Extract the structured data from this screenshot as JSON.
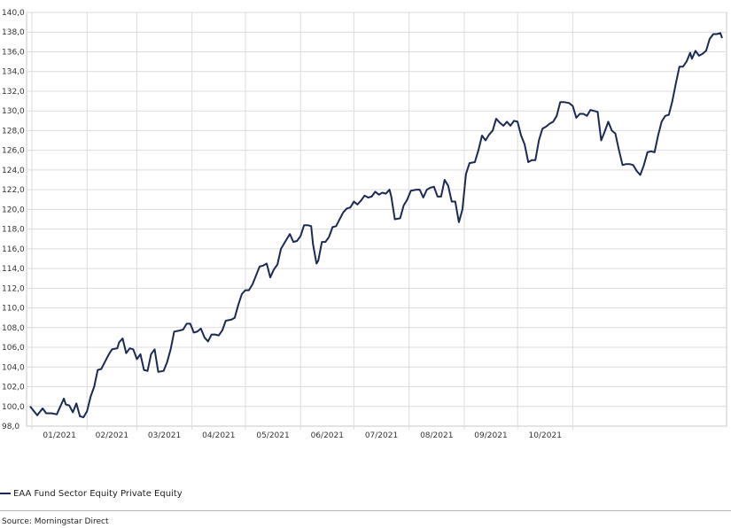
{
  "chart_data": {
    "type": "line",
    "ylim": [
      98,
      140
    ],
    "yticks": [
      "98,0",
      "100,0",
      "102,0",
      "104,0",
      "106,0",
      "108,0",
      "110,0",
      "112,0",
      "114,0",
      "116,0",
      "118,0",
      "120,0",
      "122,0",
      "124,0",
      "126,0",
      "128,0",
      "130,0",
      "132,0",
      "134,0",
      "136,0",
      "138,0",
      "140,0"
    ],
    "xticks": [
      "01/2021",
      "02/2021",
      "03/2021",
      "04/2021",
      "05/2021",
      "06/2021",
      "07/2021",
      "08/2021",
      "09/2021",
      "10/2021"
    ],
    "grid": true,
    "legend_position": "bottom-left",
    "series": [
      {
        "name": "EAA Fund Sector Equity Private Equity",
        "color": "#1b2a55",
        "points": [
          [
            "2020-12-31",
            100.0
          ],
          [
            "2021-01-04",
            99.1
          ],
          [
            "2021-01-07",
            99.8
          ],
          [
            "2021-01-09",
            99.3
          ],
          [
            "2021-01-12",
            99.3
          ],
          [
            "2021-01-15",
            99.2
          ],
          [
            "2021-01-19",
            100.8
          ],
          [
            "2021-01-20",
            100.2
          ],
          [
            "2021-01-22",
            100.1
          ],
          [
            "2021-01-24",
            99.4
          ],
          [
            "2021-01-26",
            100.3
          ],
          [
            "2021-01-28",
            99.0
          ],
          [
            "2021-01-30",
            98.9
          ],
          [
            "2021-02-01",
            99.5
          ],
          [
            "2021-02-03",
            101.0
          ],
          [
            "2021-02-05",
            102.0
          ],
          [
            "2021-02-07",
            103.7
          ],
          [
            "2021-02-09",
            103.8
          ],
          [
            "2021-02-11",
            104.5
          ],
          [
            "2021-02-13",
            105.2
          ],
          [
            "2021-02-15",
            105.8
          ],
          [
            "2021-02-18",
            105.9
          ],
          [
            "2021-02-19",
            106.5
          ],
          [
            "2021-02-21",
            106.9
          ],
          [
            "2021-02-23",
            105.4
          ],
          [
            "2021-02-25",
            105.9
          ],
          [
            "2021-02-27",
            105.8
          ],
          [
            "2021-03-01",
            104.8
          ],
          [
            "2021-03-03",
            105.3
          ],
          [
            "2021-03-05",
            103.7
          ],
          [
            "2021-03-07",
            103.6
          ],
          [
            "2021-03-09",
            105.3
          ],
          [
            "2021-03-11",
            105.8
          ],
          [
            "2021-03-13",
            103.5
          ],
          [
            "2021-03-16",
            103.6
          ],
          [
            "2021-03-18",
            104.5
          ],
          [
            "2021-03-20",
            105.8
          ],
          [
            "2021-03-22",
            107.6
          ],
          [
            "2021-03-25",
            107.7
          ],
          [
            "2021-03-27",
            107.8
          ],
          [
            "2021-03-29",
            108.4
          ],
          [
            "2021-03-31",
            108.4
          ],
          [
            "2021-04-02",
            107.5
          ],
          [
            "2021-04-04",
            107.6
          ],
          [
            "2021-04-06",
            107.9
          ],
          [
            "2021-04-08",
            107.0
          ],
          [
            "2021-04-10",
            106.6
          ],
          [
            "2021-04-12",
            107.3
          ],
          [
            "2021-04-14",
            107.3
          ],
          [
            "2021-04-16",
            107.2
          ],
          [
            "2021-04-18",
            107.7
          ],
          [
            "2021-04-20",
            108.7
          ],
          [
            "2021-04-23",
            108.8
          ],
          [
            "2021-04-25",
            109.0
          ],
          [
            "2021-04-27",
            110.3
          ],
          [
            "2021-04-29",
            111.4
          ],
          [
            "2021-05-01",
            111.8
          ],
          [
            "2021-05-03",
            111.8
          ],
          [
            "2021-05-05",
            112.4
          ],
          [
            "2021-05-07",
            113.3
          ],
          [
            "2021-05-09",
            114.2
          ],
          [
            "2021-05-11",
            114.3
          ],
          [
            "2021-05-13",
            114.5
          ],
          [
            "2021-05-15",
            113.1
          ],
          [
            "2021-05-17",
            113.9
          ],
          [
            "2021-05-19",
            114.4
          ],
          [
            "2021-05-21",
            116.0
          ],
          [
            "2021-05-24",
            116.9
          ],
          [
            "2021-05-26",
            117.5
          ],
          [
            "2021-05-28",
            116.7
          ],
          [
            "2021-05-30",
            116.8
          ],
          [
            "2021-06-01",
            117.3
          ],
          [
            "2021-06-03",
            118.4
          ],
          [
            "2021-06-05",
            118.4
          ],
          [
            "2021-06-07",
            118.3
          ],
          [
            "2021-06-08",
            116.5
          ],
          [
            "2021-06-10",
            114.5
          ],
          [
            "2021-06-11",
            114.8
          ],
          [
            "2021-06-13",
            116.7
          ],
          [
            "2021-06-15",
            116.7
          ],
          [
            "2021-06-17",
            117.2
          ],
          [
            "2021-06-19",
            118.2
          ],
          [
            "2021-06-21",
            118.3
          ],
          [
            "2021-06-23",
            119.0
          ],
          [
            "2021-06-25",
            119.7
          ],
          [
            "2021-06-27",
            120.1
          ],
          [
            "2021-06-29",
            120.2
          ],
          [
            "2021-07-01",
            120.8
          ],
          [
            "2021-07-03",
            120.5
          ],
          [
            "2021-07-05",
            120.9
          ],
          [
            "2021-07-07",
            121.4
          ],
          [
            "2021-07-09",
            121.2
          ],
          [
            "2021-07-11",
            121.3
          ],
          [
            "2021-07-13",
            121.8
          ],
          [
            "2021-07-15",
            121.5
          ],
          [
            "2021-07-17",
            121.7
          ],
          [
            "2021-07-19",
            121.6
          ],
          [
            "2021-07-21",
            122.0
          ],
          [
            "2021-07-22",
            121.3
          ],
          [
            "2021-07-24",
            119.0
          ],
          [
            "2021-07-27",
            119.1
          ],
          [
            "2021-07-29",
            120.4
          ],
          [
            "2021-07-31",
            121.0
          ],
          [
            "2021-08-02",
            121.9
          ],
          [
            "2021-08-05",
            122.0
          ],
          [
            "2021-08-07",
            122.0
          ],
          [
            "2021-08-09",
            121.2
          ],
          [
            "2021-08-11",
            122.0
          ],
          [
            "2021-08-13",
            122.2
          ],
          [
            "2021-08-15",
            122.3
          ],
          [
            "2021-08-17",
            121.3
          ],
          [
            "2021-08-19",
            121.3
          ],
          [
            "2021-08-21",
            123.0
          ],
          [
            "2021-08-23",
            122.4
          ],
          [
            "2021-08-25",
            120.8
          ],
          [
            "2021-08-27",
            120.8
          ],
          [
            "2021-08-29",
            118.7
          ],
          [
            "2021-08-31",
            120.0
          ],
          [
            "2021-09-02",
            123.6
          ],
          [
            "2021-09-04",
            124.7
          ],
          [
            "2021-09-07",
            124.8
          ],
          [
            "2021-09-09",
            126.0
          ],
          [
            "2021-09-11",
            127.5
          ],
          [
            "2021-09-13",
            127.0
          ],
          [
            "2021-09-15",
            127.6
          ],
          [
            "2021-09-17",
            128.0
          ],
          [
            "2021-09-19",
            129.2
          ],
          [
            "2021-09-21",
            128.8
          ],
          [
            "2021-09-23",
            128.5
          ],
          [
            "2021-09-25",
            128.9
          ],
          [
            "2021-09-27",
            128.5
          ],
          [
            "2021-09-29",
            129.0
          ],
          [
            "2021-10-01",
            128.9
          ],
          [
            "2021-10-03",
            127.5
          ],
          [
            "2021-10-05",
            126.6
          ],
          [
            "2021-10-07",
            124.8
          ],
          [
            "2021-10-09",
            125.0
          ],
          [
            "2021-10-11",
            125.0
          ],
          [
            "2021-10-13",
            127.0
          ],
          [
            "2021-10-15",
            128.2
          ],
          [
            "2021-10-17",
            128.4
          ],
          [
            "2021-10-19",
            128.7
          ],
          [
            "2021-10-21",
            128.9
          ],
          [
            "2021-10-23",
            129.5
          ],
          [
            "2021-10-25",
            130.9
          ],
          [
            "2021-10-27",
            130.9
          ],
          [
            "2021-10-30",
            130.8
          ],
          [
            "2021-11-01",
            130.5
          ],
          [
            "2021-11-03",
            129.3
          ],
          [
            "2021-11-05",
            129.7
          ],
          [
            "2021-11-07",
            129.7
          ],
          [
            "2021-11-09",
            129.5
          ],
          [
            "2021-11-11",
            130.1
          ],
          [
            "2021-11-13",
            130.0
          ],
          [
            "2021-11-15",
            129.9
          ],
          [
            "2021-11-17",
            127.0
          ],
          [
            "2021-11-19",
            127.9
          ],
          [
            "2021-11-21",
            128.9
          ],
          [
            "2021-11-23",
            128.0
          ],
          [
            "2021-11-25",
            127.7
          ],
          [
            "2021-11-27",
            126.0
          ],
          [
            "2021-11-29",
            124.5
          ],
          [
            "2021-12-01",
            124.6
          ],
          [
            "2021-12-03",
            124.6
          ],
          [
            "2021-12-05",
            124.5
          ],
          [
            "2021-12-07",
            123.9
          ],
          [
            "2021-12-09",
            123.5
          ],
          [
            "2021-12-11",
            124.5
          ],
          [
            "2021-12-13",
            125.8
          ],
          [
            "2021-12-15",
            125.9
          ],
          [
            "2021-12-17",
            125.8
          ],
          [
            "2021-12-19",
            127.5
          ],
          [
            "2021-12-21",
            128.9
          ],
          [
            "2021-12-23",
            129.5
          ],
          [
            "2021-12-25",
            129.6
          ],
          [
            "2021-12-27",
            131.0
          ],
          [
            "2021-12-29",
            132.8
          ],
          [
            "2021-12-31",
            134.5
          ],
          [
            "2022-01-02",
            134.5
          ],
          [
            "2022-01-04",
            135.0
          ],
          [
            "2022-01-06",
            135.9
          ],
          [
            "2022-01-07",
            135.3
          ],
          [
            "2022-01-09",
            136.1
          ],
          [
            "2022-01-11",
            135.6
          ],
          [
            "2022-01-13",
            135.8
          ],
          [
            "2022-01-15",
            136.1
          ],
          [
            "2022-01-17",
            137.3
          ],
          [
            "2022-01-19",
            137.8
          ],
          [
            "2022-01-21",
            137.8
          ],
          [
            "2022-01-23",
            137.9
          ],
          [
            "2022-01-24",
            137.4
          ]
        ]
      }
    ]
  },
  "legend": {
    "label": "EAA Fund Sector Equity Private Equity",
    "color": "#1b2a55"
  },
  "source": "Source: Morningstar Direct"
}
